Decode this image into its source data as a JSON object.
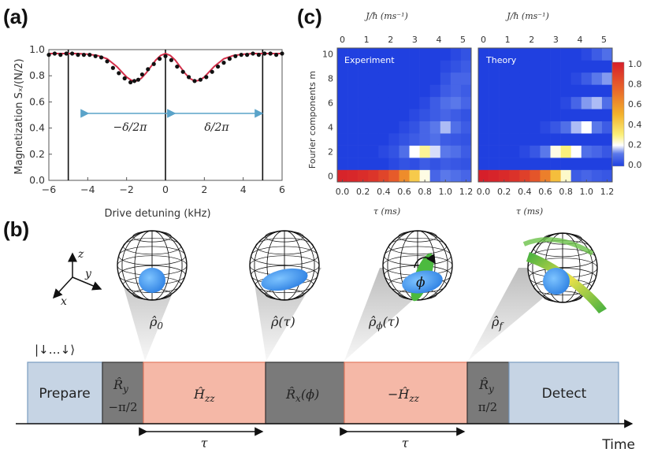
{
  "panels": {
    "a": "(a)",
    "b": "(b)",
    "c": "(c)"
  },
  "colors": {
    "prepare": "#c6d4e4",
    "gray": "#7a7a7a",
    "pink": "#f5b8a7",
    "pink_edge": "#e37a60",
    "fit_line": "#d32f4a",
    "arrow_blue": "#5aa3c9"
  },
  "chart_data": [
    {
      "type": "scatter",
      "title": "(a)",
      "xlabel": "Drive detuning (kHz)",
      "ylabel": "Magnetization Sₓ/(N/2)",
      "xlim": [
        -6,
        6
      ],
      "ylim": [
        0,
        1.0
      ],
      "xticks": [
        "−6",
        "−4",
        "−2",
        "0",
        "2",
        "4",
        "6"
      ],
      "yticks": [
        "0.0",
        "0.2",
        "0.4",
        "0.6",
        "0.8",
        "1.0"
      ],
      "vlines": [
        -5,
        0,
        5
      ],
      "annotations": [
        "−δ/2π",
        "δ/2π"
      ],
      "points": {
        "x": [
          -6.0,
          -5.7,
          -5.4,
          -5.1,
          -4.8,
          -4.5,
          -4.2,
          -3.9,
          -3.6,
          -3.3,
          -3.0,
          -2.7,
          -2.4,
          -2.1,
          -1.8,
          -1.6,
          -1.4,
          -1.2,
          -0.9,
          -0.6,
          -0.3,
          0.0,
          0.3,
          0.6,
          0.9,
          1.2,
          1.5,
          1.8,
          2.1,
          2.4,
          2.7,
          3.0,
          3.3,
          3.6,
          3.9,
          4.2,
          4.5,
          4.8,
          5.1,
          5.4,
          5.7,
          6.0
        ],
        "y": [
          0.96,
          0.97,
          0.96,
          0.97,
          0.97,
          0.96,
          0.96,
          0.96,
          0.95,
          0.94,
          0.91,
          0.86,
          0.82,
          0.78,
          0.75,
          0.76,
          0.77,
          0.81,
          0.85,
          0.89,
          0.93,
          0.95,
          0.92,
          0.87,
          0.83,
          0.79,
          0.76,
          0.77,
          0.79,
          0.83,
          0.87,
          0.9,
          0.93,
          0.95,
          0.96,
          0.96,
          0.97,
          0.96,
          0.97,
          0.97,
          0.96,
          0.97
        ]
      },
      "fit_line": {
        "x": [
          -6,
          -5.5,
          -5,
          -4.5,
          -4,
          -3.5,
          -3,
          -2.5,
          -2,
          -1.75,
          -1.5,
          -1.25,
          -1,
          -0.75,
          -0.5,
          -0.25,
          0,
          0.25,
          0.5,
          0.75,
          1,
          1.25,
          1.5,
          1.75,
          2,
          2.5,
          3,
          3.5,
          4,
          4.5,
          5,
          5.5,
          6
        ],
        "y": [
          0.97,
          0.97,
          0.97,
          0.97,
          0.965,
          0.955,
          0.93,
          0.87,
          0.79,
          0.765,
          0.76,
          0.78,
          0.82,
          0.87,
          0.92,
          0.955,
          0.97,
          0.955,
          0.92,
          0.87,
          0.82,
          0.78,
          0.76,
          0.765,
          0.79,
          0.87,
          0.93,
          0.955,
          0.965,
          0.97,
          0.97,
          0.97,
          0.97
        ]
      }
    },
    {
      "type": "heatmap",
      "panel_title": "Experiment",
      "xlabel": "τ (ms)",
      "top_xlabel": "J/ħ (ms⁻¹)",
      "ylabel": "Fourier components m",
      "x_values": [
        0.0,
        0.1,
        0.2,
        0.3,
        0.4,
        0.5,
        0.6,
        0.7,
        0.8,
        0.9,
        1.0,
        1.1,
        1.2
      ],
      "xticks": [
        "0.0",
        "0.2",
        "0.4",
        "0.6",
        "0.8",
        "1.0",
        "1.2"
      ],
      "top_xticks": [
        "0",
        "1",
        "2",
        "3",
        "4",
        "5"
      ],
      "yticks": [
        "0",
        "2",
        "4",
        "6",
        "8",
        "10"
      ],
      "rows_m0_to_m10": [
        [
          0.98,
          0.97,
          0.95,
          0.92,
          0.86,
          0.78,
          0.62,
          0.42,
          0.22,
          0.08,
          0.12,
          0.1,
          0.08
        ],
        [
          0.0,
          0.0,
          0.0,
          0.0,
          0.0,
          0.02,
          0.04,
          0.03,
          0.06,
          0.04,
          0.06,
          0.05,
          0.04
        ],
        [
          0.0,
          0.0,
          0.0,
          0.0,
          0.02,
          0.04,
          0.1,
          0.2,
          0.28,
          0.18,
          0.12,
          0.1,
          0.06
        ],
        [
          0.0,
          0.0,
          0.0,
          0.0,
          0.0,
          0.02,
          0.04,
          0.06,
          0.08,
          0.1,
          0.06,
          0.05,
          0.04
        ],
        [
          0.0,
          0.0,
          0.0,
          0.0,
          0.0,
          0.0,
          0.02,
          0.04,
          0.08,
          0.12,
          0.16,
          0.1,
          0.06
        ],
        [
          0.0,
          0.0,
          0.0,
          0.0,
          0.0,
          0.0,
          0.0,
          0.02,
          0.04,
          0.06,
          0.08,
          0.06,
          0.04
        ],
        [
          0.0,
          0.0,
          0.0,
          0.0,
          0.0,
          0.0,
          0.0,
          0.0,
          0.02,
          0.06,
          0.1,
          0.12,
          0.08
        ],
        [
          0.0,
          0.0,
          0.0,
          0.0,
          0.0,
          0.0,
          0.0,
          0.0,
          0.0,
          0.02,
          0.06,
          0.08,
          0.06
        ],
        [
          0.0,
          0.0,
          0.0,
          0.0,
          0.0,
          0.0,
          0.0,
          0.0,
          0.0,
          0.0,
          0.04,
          0.08,
          0.08
        ],
        [
          0.0,
          0.0,
          0.0,
          0.0,
          0.0,
          0.0,
          0.0,
          0.0,
          0.0,
          0.0,
          0.02,
          0.04,
          0.06
        ],
        [
          0.0,
          0.0,
          0.0,
          0.0,
          0.0,
          0.0,
          0.0,
          0.0,
          0.0,
          0.0,
          0.0,
          0.02,
          0.04
        ]
      ]
    },
    {
      "type": "heatmap",
      "panel_title": "Theory",
      "xlabel": "τ (ms)",
      "top_xlabel": "J/ħ (ms⁻¹)",
      "x_values": [
        0.0,
        0.1,
        0.2,
        0.3,
        0.4,
        0.5,
        0.6,
        0.7,
        0.8,
        0.9,
        1.0,
        1.1,
        1.2
      ],
      "xticks": [
        "0.0",
        "0.2",
        "0.4",
        "0.6",
        "0.8",
        "1.0",
        "1.2"
      ],
      "top_xticks": [
        "0",
        "1",
        "2",
        "3",
        "4",
        "5"
      ],
      "rows_m0_to_m10": [
        [
          1.0,
          0.98,
          0.96,
          0.93,
          0.88,
          0.8,
          0.66,
          0.46,
          0.24,
          0.06,
          0.08,
          0.06,
          0.05
        ],
        [
          0.0,
          0.0,
          0.0,
          0.0,
          0.0,
          0.0,
          0.0,
          0.0,
          0.0,
          0.0,
          0.0,
          0.0,
          0.0
        ],
        [
          0.0,
          0.0,
          0.0,
          0.0,
          0.02,
          0.05,
          0.12,
          0.22,
          0.3,
          0.2,
          0.1,
          0.08,
          0.05
        ],
        [
          0.0,
          0.0,
          0.0,
          0.0,
          0.0,
          0.0,
          0.0,
          0.0,
          0.0,
          0.0,
          0.0,
          0.0,
          0.0
        ],
        [
          0.0,
          0.0,
          0.0,
          0.0,
          0.0,
          0.0,
          0.02,
          0.05,
          0.1,
          0.16,
          0.2,
          0.12,
          0.06
        ],
        [
          0.0,
          0.0,
          0.0,
          0.0,
          0.0,
          0.0,
          0.0,
          0.0,
          0.0,
          0.0,
          0.0,
          0.0,
          0.0
        ],
        [
          0.0,
          0.0,
          0.0,
          0.0,
          0.0,
          0.0,
          0.0,
          0.0,
          0.02,
          0.08,
          0.14,
          0.16,
          0.1
        ],
        [
          0.0,
          0.0,
          0.0,
          0.0,
          0.0,
          0.0,
          0.0,
          0.0,
          0.0,
          0.0,
          0.0,
          0.0,
          0.0
        ],
        [
          0.0,
          0.0,
          0.0,
          0.0,
          0.0,
          0.0,
          0.0,
          0.0,
          0.0,
          0.02,
          0.06,
          0.12,
          0.14
        ],
        [
          0.0,
          0.0,
          0.0,
          0.0,
          0.0,
          0.0,
          0.0,
          0.0,
          0.0,
          0.0,
          0.0,
          0.0,
          0.0
        ],
        [
          0.0,
          0.0,
          0.0,
          0.0,
          0.0,
          0.0,
          0.0,
          0.0,
          0.0,
          0.0,
          0.02,
          0.06,
          0.1
        ]
      ]
    }
  ],
  "colorbar": {
    "ticks": [
      "1.0",
      "0.8",
      "0.6",
      "0.4",
      "0.2",
      "0.0"
    ]
  },
  "sequence": {
    "initial_state": "|↓…↓⟩",
    "blocks": [
      "Prepare",
      "R̂y −π/2",
      "Ĥzz",
      "R̂x(ϕ)",
      "−Ĥzz",
      "R̂y π/2",
      "Detect"
    ],
    "prepare": "Prepare",
    "ry1_top": "R̂",
    "ry1_sub": "y",
    "ry1_bottom": "−π/2",
    "hzz": "Ĥ",
    "hzz_sub": "zz",
    "rx": "R̂",
    "rx_sub": "x",
    "rx_arg": "(ϕ)",
    "neg_hzz": "−Ĥ",
    "neg_hzz_sub": "zz",
    "ry2_top": "R̂",
    "ry2_sub": "y",
    "ry2_bottom": "π/2",
    "detect": "Detect",
    "tau1": "τ",
    "tau2": "τ",
    "time": "Time"
  },
  "states": {
    "rho0": "ρ̂",
    "rho0_sub": "0",
    "rho_tau": "ρ̂(τ)",
    "rho_phi": "ρ̂",
    "rho_phi_sub": "ϕ",
    "rho_phi_arg": "(τ)",
    "rho_f": "ρ̂",
    "rho_f_sub": "f",
    "phi": "ϕ"
  },
  "axes3d": {
    "z": "z",
    "y": "y",
    "x": "x"
  }
}
